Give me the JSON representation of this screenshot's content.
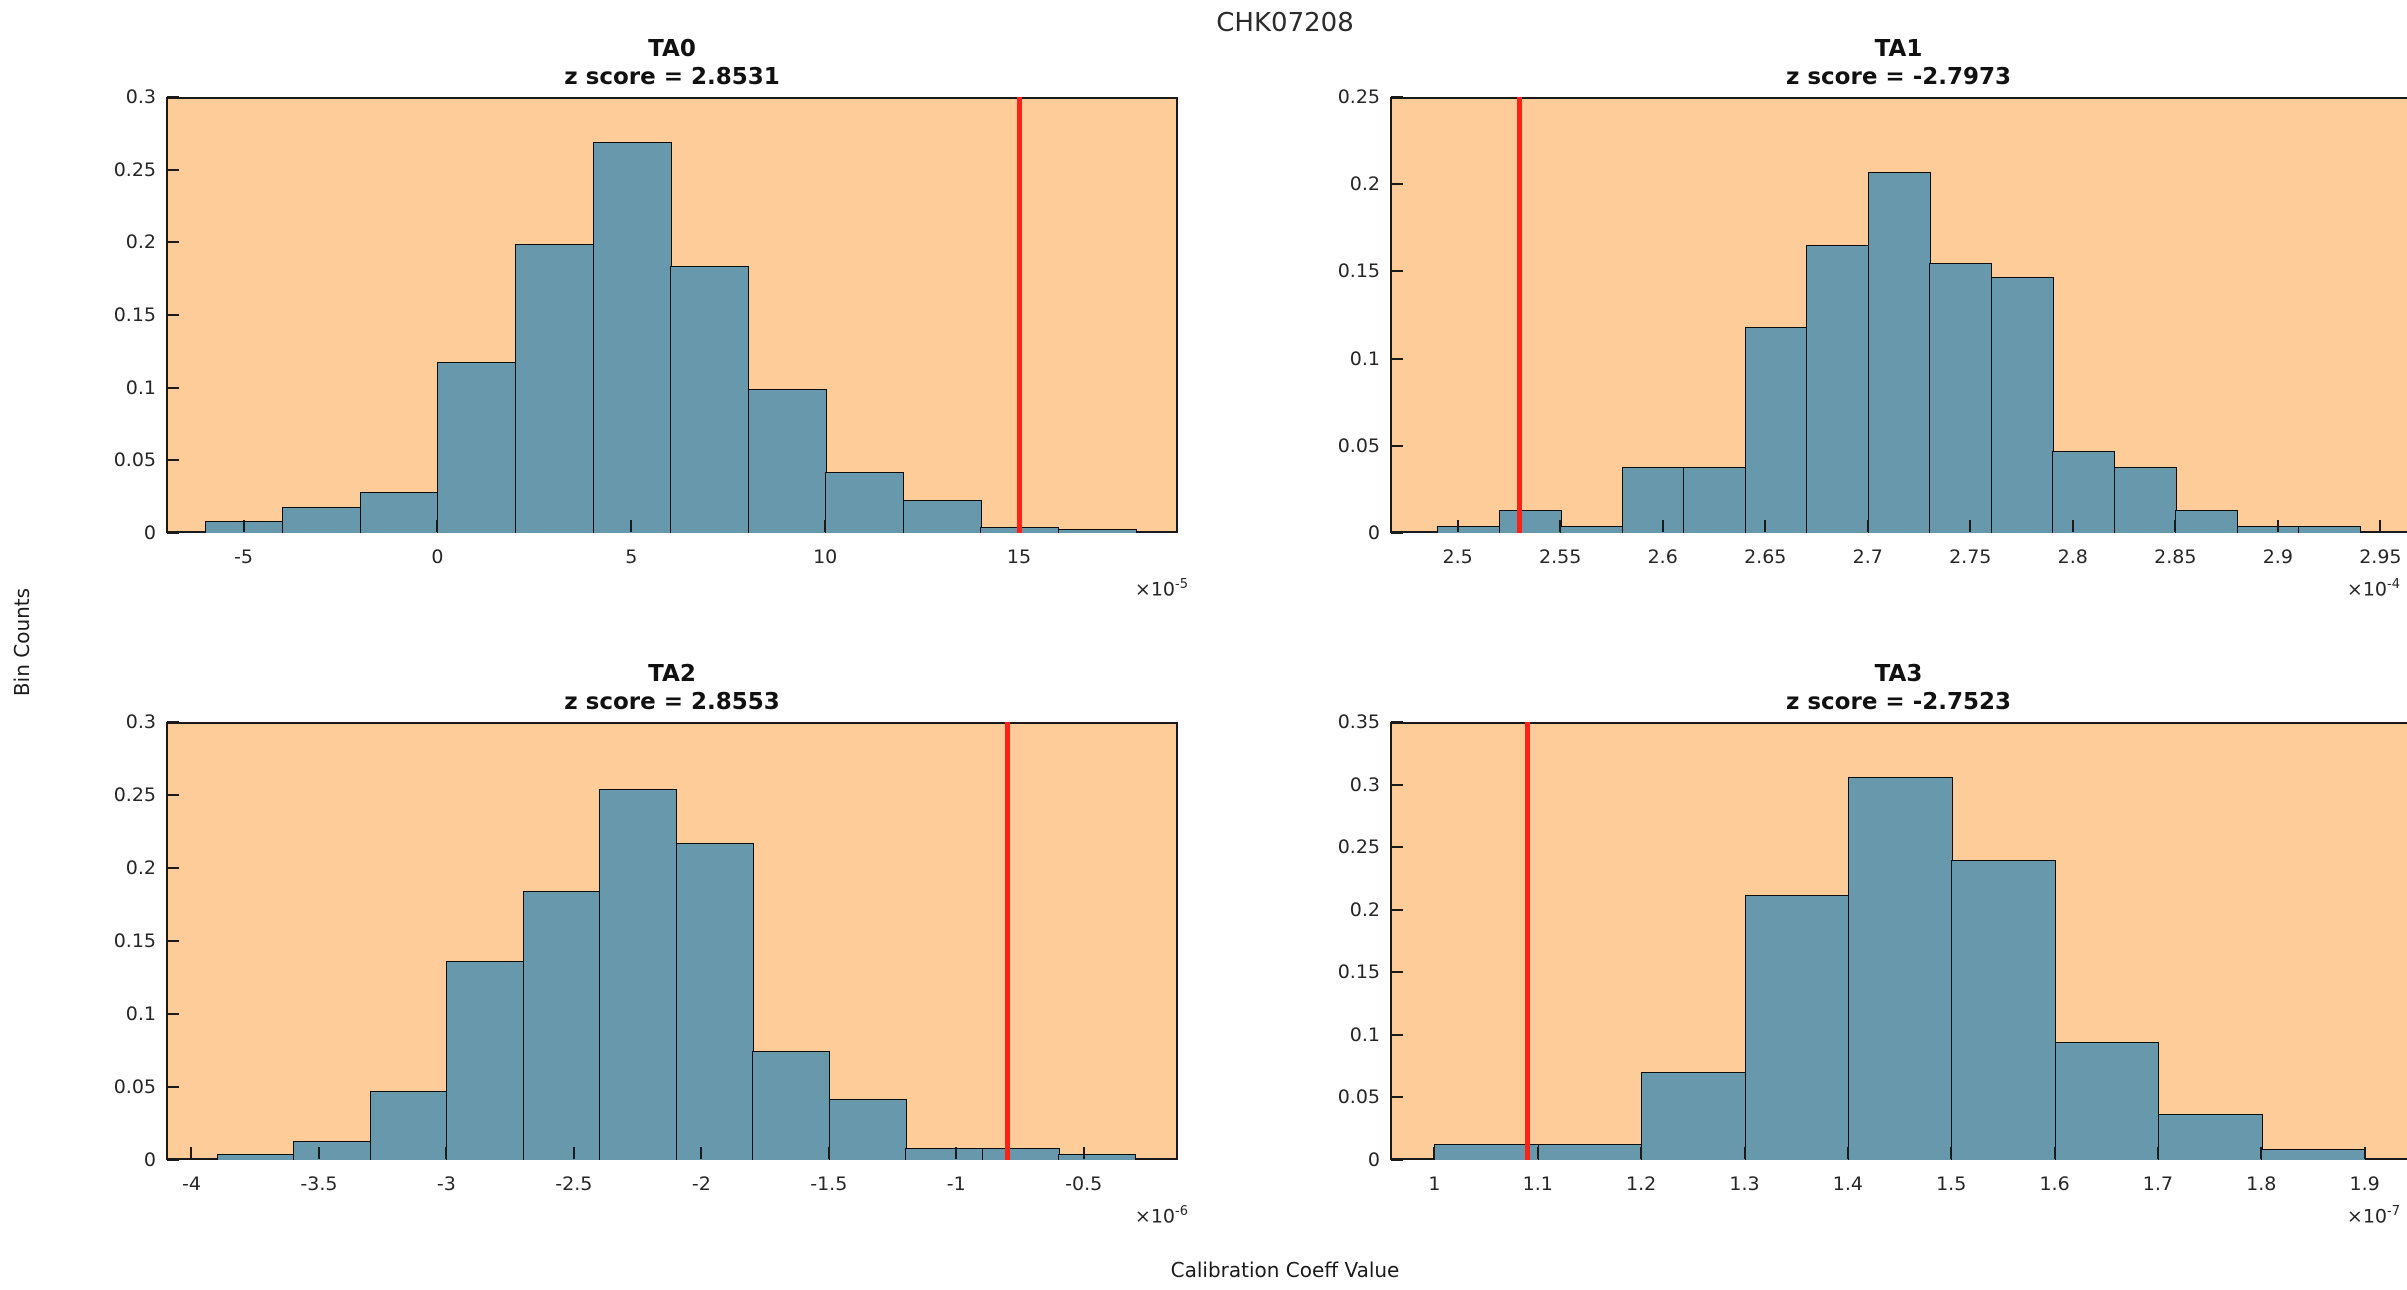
{
  "figure": {
    "title": "CHK07208",
    "xlabel": "Calibration Coeff Value",
    "ylabel": "Bin Counts"
  },
  "colors": {
    "page_background": "#ffffff",
    "plot_background": "#fecc99",
    "bar_fill": "#6898ac",
    "bar_edge": "#0d0d0d",
    "red_line": "#fb2318",
    "axis_color": "#1a1a1a",
    "text_color": "#262626"
  },
  "chart_data": [
    {
      "type": "bar",
      "subtype": "histogram",
      "title": "TA0",
      "subtitle": "z score = 2.8531",
      "z_score": 2.8531,
      "bin_edges": [
        -6,
        -4,
        -2,
        0,
        2,
        4,
        6,
        8,
        10,
        12,
        14,
        16,
        18
      ],
      "bin_heights": [
        0.008,
        0.018,
        0.028,
        0.118,
        0.199,
        0.269,
        0.184,
        0.099,
        0.042,
        0.023,
        0.004,
        0.003
      ],
      "red_line_x": 15.0,
      "xlim": [
        -7.0,
        19.1
      ],
      "ylim": [
        0,
        0.3
      ],
      "x_ticks": [
        -5,
        0,
        5,
        10,
        15
      ],
      "x_tick_labels": [
        "-5",
        "0",
        "5",
        "10",
        "15"
      ],
      "y_ticks": [
        0,
        0.05,
        0.1,
        0.15,
        0.2,
        0.25,
        0.3
      ],
      "y_tick_labels": [
        "0",
        "0.05",
        "0.1",
        "0.15",
        "0.2",
        "0.25",
        "0.3"
      ],
      "exponent_prefix": "×10",
      "exponent_power": "-5"
    },
    {
      "type": "bar",
      "subtype": "histogram",
      "title": "TA1",
      "subtitle": "z score = -2.7973",
      "z_score": -2.7973,
      "bin_edges": [
        2.49,
        2.52,
        2.55,
        2.58,
        2.61,
        2.64,
        2.67,
        2.7,
        2.73,
        2.76,
        2.79,
        2.82,
        2.85,
        2.88,
        2.91,
        2.94
      ],
      "bin_heights": [
        0.004,
        0.013,
        0.004,
        0.038,
        0.038,
        0.118,
        0.165,
        0.207,
        0.155,
        0.147,
        0.047,
        0.038,
        0.013,
        0.004,
        0.004
      ],
      "red_line_x": 2.53,
      "xlim": [
        2.467,
        2.963
      ],
      "ylim": [
        0,
        0.25
      ],
      "x_ticks": [
        2.5,
        2.55,
        2.6,
        2.65,
        2.7,
        2.75,
        2.8,
        2.85,
        2.9,
        2.95
      ],
      "x_tick_labels": [
        "2.5",
        "2.55",
        "2.6",
        "2.65",
        "2.7",
        "2.75",
        "2.8",
        "2.85",
        "2.9",
        "2.95"
      ],
      "y_ticks": [
        0,
        0.05,
        0.1,
        0.15,
        0.2,
        0.25
      ],
      "y_tick_labels": [
        "0",
        "0.05",
        "0.1",
        "0.15",
        "0.2",
        "0.25"
      ],
      "exponent_prefix": "×10",
      "exponent_power": "-4"
    },
    {
      "type": "bar",
      "subtype": "histogram",
      "title": "TA2",
      "subtitle": "z score = 2.8553",
      "z_score": 2.8553,
      "bin_edges": [
        -3.9,
        -3.6,
        -3.3,
        -3.0,
        -2.7,
        -2.4,
        -2.1,
        -1.8,
        -1.5,
        -1.2,
        -0.9,
        -0.6,
        -0.3
      ],
      "bin_heights": [
        0.004,
        0.013,
        0.047,
        0.136,
        0.184,
        0.254,
        0.217,
        0.075,
        0.042,
        0.008,
        0.008,
        0.004
      ],
      "red_line_x": -0.8,
      "xlim": [
        -4.1,
        -0.13
      ],
      "ylim": [
        0,
        0.3
      ],
      "x_ticks": [
        -4,
        -3.5,
        -3,
        -2.5,
        -2,
        -1.5,
        -1,
        -0.5
      ],
      "x_tick_labels": [
        "-4",
        "-3.5",
        "-3",
        "-2.5",
        "-2",
        "-1.5",
        "-1",
        "-0.5"
      ],
      "y_ticks": [
        0,
        0.05,
        0.1,
        0.15,
        0.2,
        0.25,
        0.3
      ],
      "y_tick_labels": [
        "0",
        "0.05",
        "0.1",
        "0.15",
        "0.2",
        "0.25",
        "0.3"
      ],
      "exponent_prefix": "×10",
      "exponent_power": "-6"
    },
    {
      "type": "bar",
      "subtype": "histogram",
      "title": "TA3",
      "subtitle": "z score = -2.7523",
      "z_score": -2.7523,
      "bin_edges": [
        1.0,
        1.1,
        1.2,
        1.3,
        1.4,
        1.5,
        1.6,
        1.7,
        1.8,
        1.9
      ],
      "bin_heights": [
        0.013,
        0.013,
        0.07,
        0.212,
        0.306,
        0.24,
        0.094,
        0.037,
        0.009
      ],
      "red_line_x": 1.09,
      "xlim": [
        0.957,
        1.941
      ],
      "ylim": [
        0,
        0.35
      ],
      "x_ticks": [
        1,
        1.1,
        1.2,
        1.3,
        1.4,
        1.5,
        1.6,
        1.7,
        1.8,
        1.9
      ],
      "x_tick_labels": [
        "1",
        "1.1",
        "1.2",
        "1.3",
        "1.4",
        "1.5",
        "1.6",
        "1.7",
        "1.8",
        "1.9"
      ],
      "y_ticks": [
        0,
        0.05,
        0.1,
        0.15,
        0.2,
        0.25,
        0.3,
        0.35
      ],
      "y_tick_labels": [
        "0",
        "0.05",
        "0.1",
        "0.15",
        "0.2",
        "0.25",
        "0.3",
        "0.35"
      ],
      "exponent_prefix": "×10",
      "exponent_power": "-7"
    }
  ]
}
